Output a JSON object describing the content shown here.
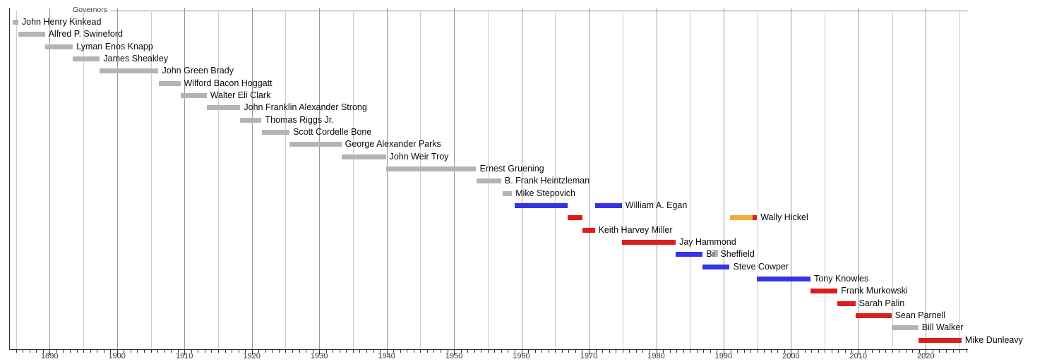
{
  "chart_data": {
    "type": "timeline",
    "title": "Governors",
    "x_axis": {
      "range_start": 1884.0,
      "range_end": 2026.2,
      "major_tick_interval": 10,
      "gridline_interval": 5,
      "minor_tick_interval": 1,
      "tick_labels": [
        "1890",
        "1900",
        "1910",
        "1920",
        "1930",
        "1940",
        "1950",
        "1960",
        "1970",
        "1980",
        "1990",
        "2000",
        "2010",
        "2020"
      ]
    },
    "party_colors": {
      "territorial": "#b4b4b4",
      "democratic": "#3434e4",
      "republican": "#dc1e1e",
      "alaskan_independence": "#f0ad3e",
      "independent": "#b4b4b4"
    },
    "grid_colors": {
      "major": "#999999",
      "minor": "#cdcdcd",
      "axis": "#2f2f2f"
    },
    "governors": [
      {
        "name": "John Henry Kinkead",
        "segments": [
          {
            "start": 1884.5,
            "end": 1885.35,
            "party": "territorial"
          }
        ]
      },
      {
        "name": "Alfred P. Swineford",
        "segments": [
          {
            "start": 1885.35,
            "end": 1889.3,
            "party": "territorial"
          }
        ]
      },
      {
        "name": "Lyman Enos Knapp",
        "segments": [
          {
            "start": 1889.3,
            "end": 1893.45,
            "party": "territorial"
          }
        ]
      },
      {
        "name": "James Sheakley",
        "segments": [
          {
            "start": 1893.45,
            "end": 1897.45,
            "party": "territorial"
          }
        ]
      },
      {
        "name": "John Green Brady",
        "segments": [
          {
            "start": 1897.45,
            "end": 1906.15,
            "party": "territorial"
          }
        ]
      },
      {
        "name": "Wilford Bacon Hoggatt",
        "segments": [
          {
            "start": 1906.15,
            "end": 1909.4,
            "party": "territorial"
          }
        ]
      },
      {
        "name": "Walter Eli Clark",
        "segments": [
          {
            "start": 1909.4,
            "end": 1913.3,
            "party": "territorial"
          }
        ]
      },
      {
        "name": "John Franklin Alexander Strong",
        "segments": [
          {
            "start": 1913.3,
            "end": 1918.3,
            "party": "territorial"
          }
        ]
      },
      {
        "name": "Thomas Riggs Jr.",
        "segments": [
          {
            "start": 1918.3,
            "end": 1921.45,
            "party": "territorial"
          }
        ]
      },
      {
        "name": "Scott Cordelle Bone",
        "segments": [
          {
            "start": 1921.45,
            "end": 1925.6,
            "party": "territorial"
          }
        ]
      },
      {
        "name": "George Alexander Parks",
        "segments": [
          {
            "start": 1925.6,
            "end": 1933.3,
            "party": "territorial"
          }
        ]
      },
      {
        "name": "John Weir Troy",
        "segments": [
          {
            "start": 1933.3,
            "end": 1939.9,
            "party": "territorial"
          }
        ]
      },
      {
        "name": "Ernest Gruening",
        "segments": [
          {
            "start": 1939.9,
            "end": 1953.3,
            "party": "territorial"
          }
        ]
      },
      {
        "name": "B. Frank Heintzleman",
        "segments": [
          {
            "start": 1953.3,
            "end": 1957.0,
            "party": "territorial"
          }
        ]
      },
      {
        "name": "Mike Stepovich",
        "segments": [
          {
            "start": 1957.25,
            "end": 1958.6,
            "party": "territorial"
          }
        ]
      },
      {
        "name": "William A. Egan",
        "segments": [
          {
            "start": 1959.0,
            "end": 1966.9,
            "party": "democratic"
          },
          {
            "start": 1970.9,
            "end": 1974.9,
            "party": "democratic"
          }
        ]
      },
      {
        "name": "Wally Hickel",
        "segments": [
          {
            "start": 1966.9,
            "end": 1969.1,
            "party": "republican"
          },
          {
            "start": 1990.9,
            "end": 1994.25,
            "party": "alaskan_independence"
          },
          {
            "start": 1994.25,
            "end": 1994.95,
            "party": "republican"
          }
        ]
      },
      {
        "name": "Keith Harvey Miller",
        "segments": [
          {
            "start": 1969.1,
            "end": 1970.9,
            "party": "republican"
          }
        ]
      },
      {
        "name": "Jay Hammond",
        "segments": [
          {
            "start": 1974.9,
            "end": 1982.9,
            "party": "republican"
          }
        ]
      },
      {
        "name": "Bill Sheffield",
        "segments": [
          {
            "start": 1982.9,
            "end": 1986.9,
            "party": "democratic"
          }
        ]
      },
      {
        "name": "Steve Cowper",
        "segments": [
          {
            "start": 1986.9,
            "end": 1990.9,
            "party": "democratic"
          }
        ]
      },
      {
        "name": "Tony Knowles",
        "segments": [
          {
            "start": 1994.95,
            "end": 2002.9,
            "party": "democratic"
          }
        ]
      },
      {
        "name": "Frank Murkowski",
        "segments": [
          {
            "start": 2002.9,
            "end": 2006.9,
            "party": "republican"
          }
        ]
      },
      {
        "name": "Sarah Palin",
        "segments": [
          {
            "start": 2006.9,
            "end": 2009.55,
            "party": "republican"
          }
        ]
      },
      {
        "name": "Sean Parnell",
        "segments": [
          {
            "start": 2009.55,
            "end": 2014.9,
            "party": "republican"
          }
        ]
      },
      {
        "name": "Bill Walker",
        "segments": [
          {
            "start": 2014.9,
            "end": 2018.9,
            "party": "independent"
          }
        ]
      },
      {
        "name": "Mike Dunleavy",
        "segments": [
          {
            "start": 2018.9,
            "end": 2025.3,
            "party": "republican"
          }
        ]
      }
    ]
  }
}
